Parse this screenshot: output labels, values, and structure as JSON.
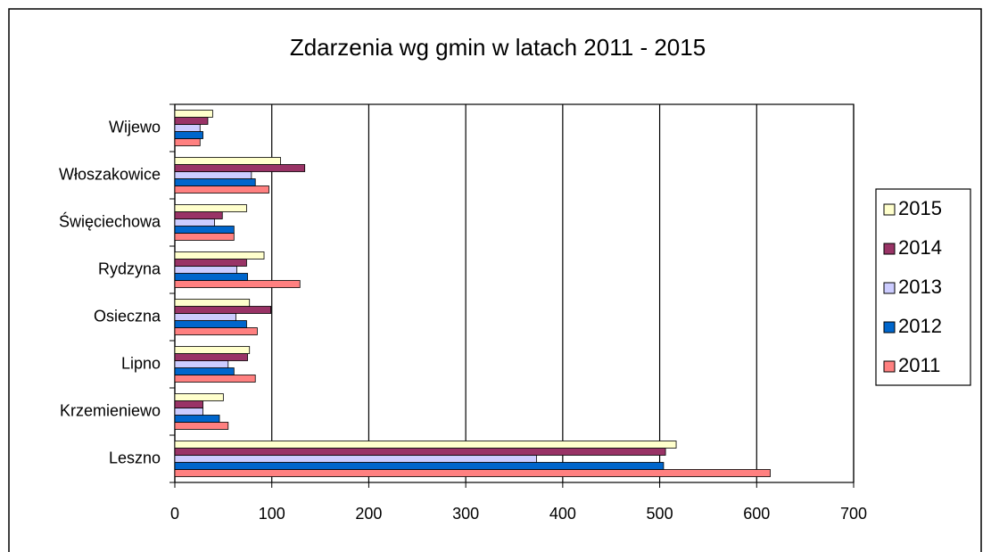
{
  "chart_data": {
    "type": "barh",
    "title": "Zdarzenia wg gmin w latach 2011 - 2015",
    "categories": [
      "Leszno",
      "Krzemieniewo",
      "Lipno",
      "Osieczna",
      "Rydzyna",
      "Święciechowa",
      "Włoszakowice",
      "Wijewo"
    ],
    "series": [
      {
        "name": "2011",
        "color": "#ff8080",
        "values": [
          614,
          55,
          83,
          85,
          129,
          61,
          97,
          26
        ]
      },
      {
        "name": "2012",
        "color": "#0066cc",
        "values": [
          504,
          46,
          61,
          74,
          75,
          61,
          83,
          29
        ]
      },
      {
        "name": "2013",
        "color": "#ccccff",
        "values": [
          373,
          29,
          55,
          63,
          64,
          41,
          79,
          26
        ]
      },
      {
        "name": "2014",
        "color": "#993366",
        "values": [
          506,
          29,
          75,
          99,
          74,
          49,
          134,
          34
        ]
      },
      {
        "name": "2015",
        "color": "#ffffcc",
        "values": [
          517,
          50,
          77,
          77,
          92,
          74,
          109,
          39
        ]
      }
    ],
    "xlim": [
      0,
      700
    ],
    "xticks": [
      0,
      100,
      200,
      300,
      400,
      500,
      600,
      700
    ],
    "grid": true,
    "legend": "right"
  }
}
